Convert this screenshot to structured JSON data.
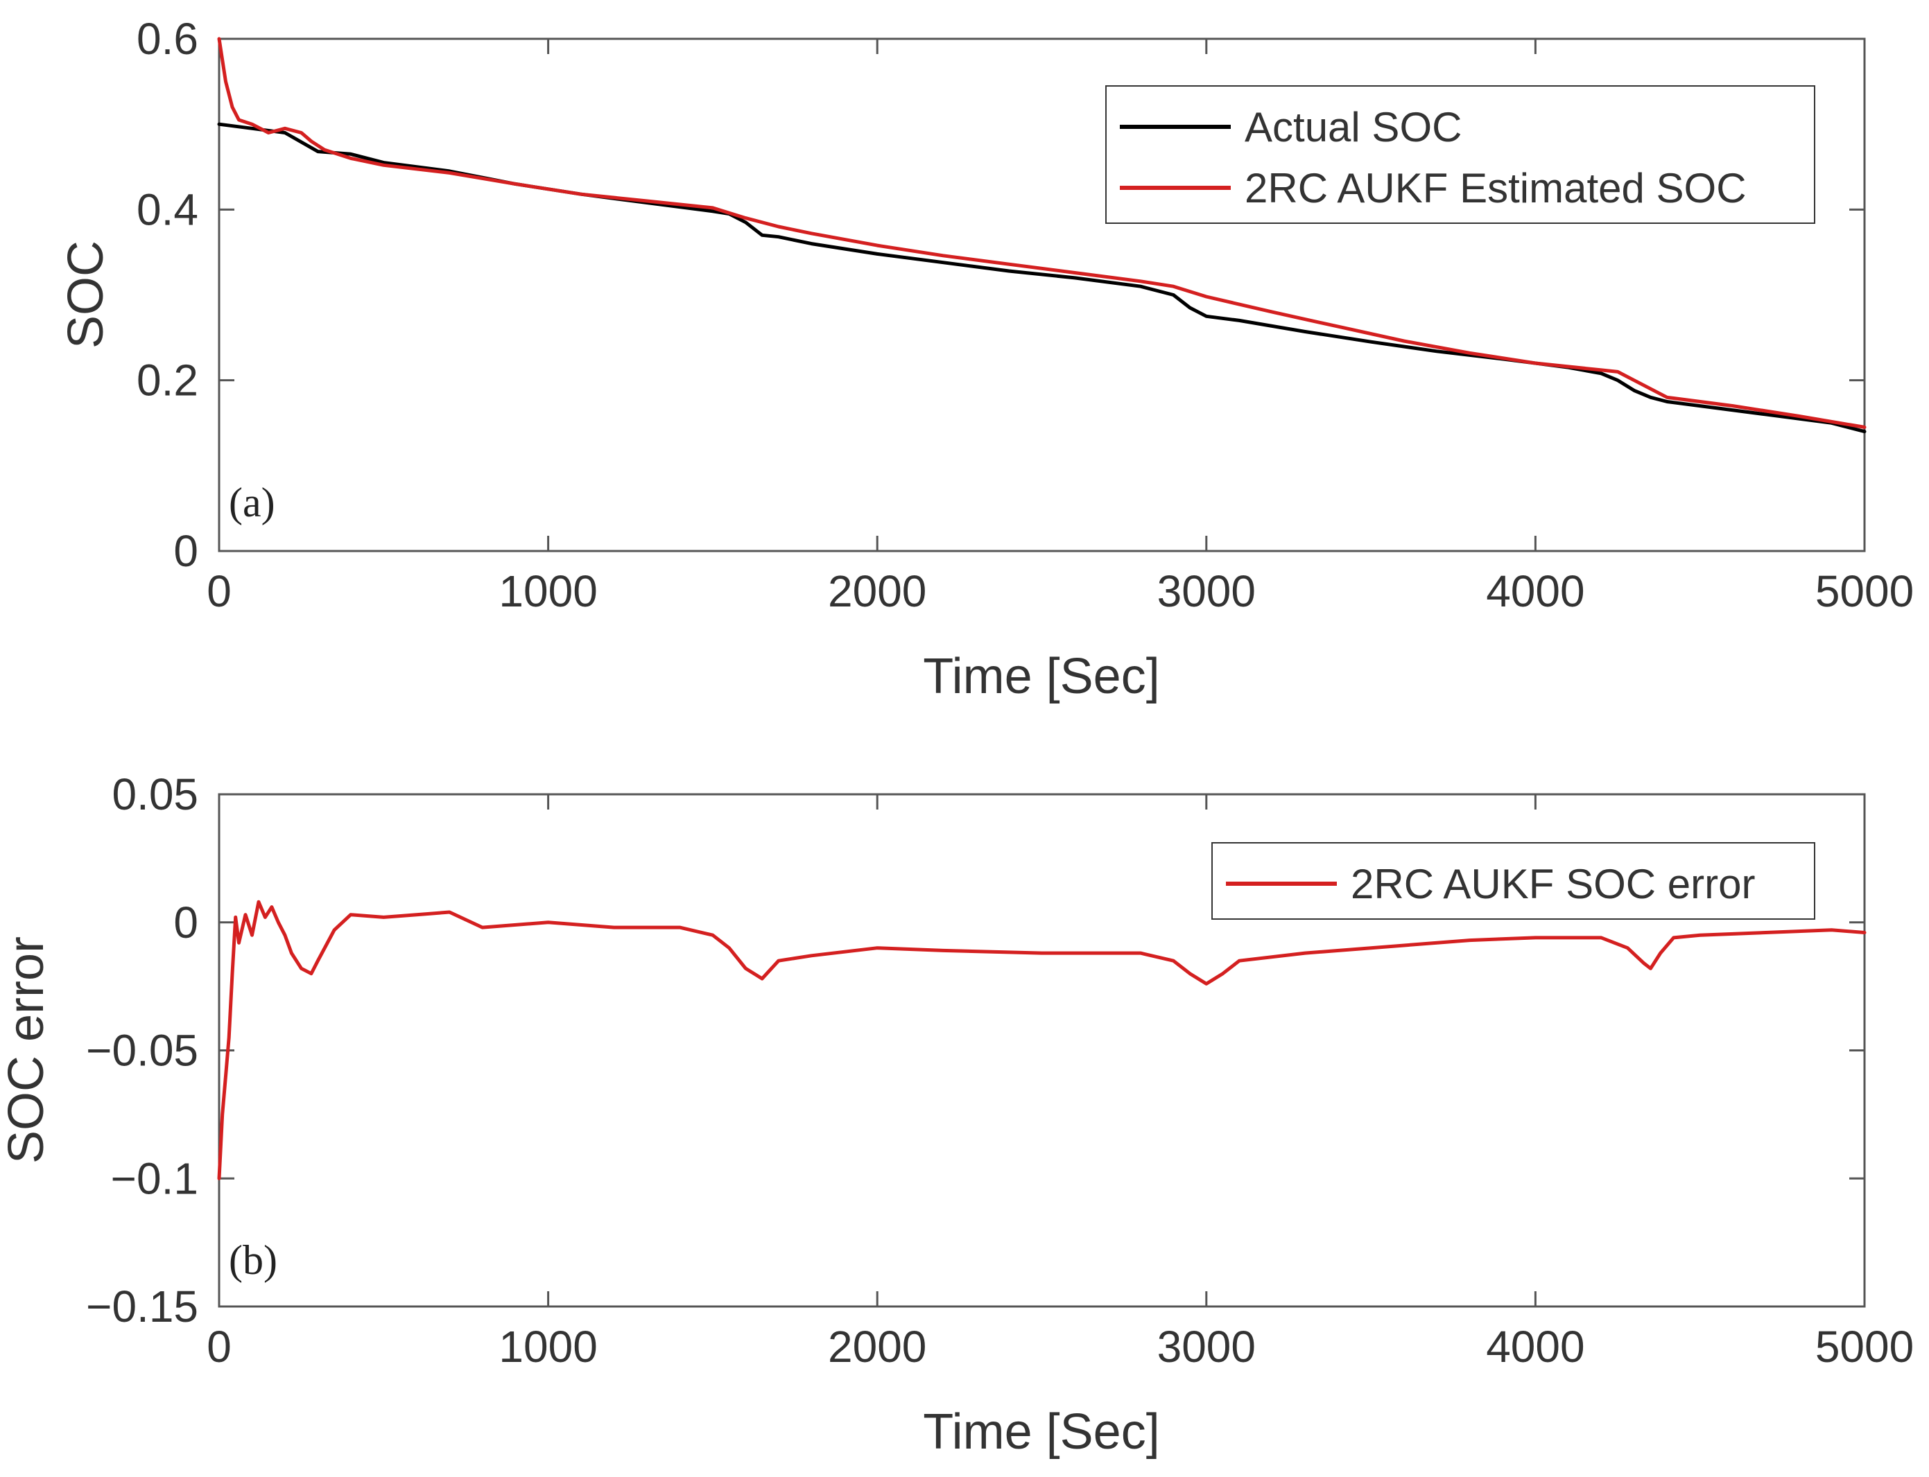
{
  "chart_data": [
    {
      "type": "line",
      "panel_label": "(a)",
      "title": "",
      "xlabel": "Time [Sec]",
      "ylabel": "SOC",
      "xlim": [
        0,
        5000
      ],
      "ylim": [
        0,
        0.6
      ],
      "xticks": [
        0,
        1000,
        2000,
        3000,
        4000,
        5000
      ],
      "yticks": [
        0,
        0.2,
        0.4,
        0.6
      ],
      "xtick_labels": [
        "0",
        "1000",
        "2000",
        "3000",
        "4000",
        "5000"
      ],
      "ytick_labels": [
        "0",
        "0.2",
        "0.4",
        "0.6"
      ],
      "legend_position": "top-right",
      "series": [
        {
          "name": "Actual SOC",
          "color": "#000000",
          "x": [
            0,
            100,
            200,
            300,
            400,
            500,
            700,
            900,
            1100,
            1300,
            1500,
            1550,
            1600,
            1650,
            1700,
            1800,
            2000,
            2200,
            2400,
            2600,
            2800,
            2900,
            2950,
            3000,
            3100,
            3300,
            3500,
            3700,
            3900,
            4100,
            4200,
            4250,
            4300,
            4350,
            4400,
            4500,
            4700,
            4900,
            5000
          ],
          "y": [
            0.5,
            0.495,
            0.49,
            0.468,
            0.465,
            0.455,
            0.445,
            0.43,
            0.418,
            0.408,
            0.398,
            0.395,
            0.385,
            0.37,
            0.368,
            0.36,
            0.348,
            0.338,
            0.328,
            0.32,
            0.31,
            0.3,
            0.285,
            0.275,
            0.27,
            0.257,
            0.245,
            0.234,
            0.225,
            0.215,
            0.208,
            0.2,
            0.188,
            0.18,
            0.175,
            0.17,
            0.16,
            0.15,
            0.14
          ]
        },
        {
          "name": "2RC AUKF Estimated SOC",
          "color": "#d42020",
          "x": [
            0,
            20,
            40,
            60,
            100,
            150,
            200,
            250,
            280,
            320,
            400,
            500,
            700,
            900,
            1100,
            1300,
            1500,
            1600,
            1700,
            1800,
            2000,
            2200,
            2400,
            2600,
            2800,
            2900,
            3000,
            3200,
            3400,
            3600,
            3800,
            4000,
            4200,
            4250,
            4300,
            4400,
            4600,
            4800,
            5000
          ],
          "y": [
            0.6,
            0.55,
            0.52,
            0.505,
            0.5,
            0.49,
            0.495,
            0.49,
            0.48,
            0.47,
            0.46,
            0.452,
            0.443,
            0.43,
            0.418,
            0.41,
            0.402,
            0.39,
            0.38,
            0.372,
            0.358,
            0.346,
            0.336,
            0.326,
            0.316,
            0.31,
            0.298,
            0.28,
            0.263,
            0.246,
            0.232,
            0.22,
            0.212,
            0.21,
            0.2,
            0.18,
            0.17,
            0.158,
            0.145
          ]
        }
      ]
    },
    {
      "type": "line",
      "panel_label": "(b)",
      "title": "",
      "xlabel": "Time [Sec]",
      "ylabel": "SOC error",
      "xlim": [
        0,
        5000
      ],
      "ylim": [
        -0.15,
        0.05
      ],
      "xticks": [
        0,
        1000,
        2000,
        3000,
        4000,
        5000
      ],
      "yticks": [
        -0.15,
        -0.1,
        -0.05,
        0,
        0.05
      ],
      "xtick_labels": [
        "0",
        "1000",
        "2000",
        "3000",
        "4000",
        "5000"
      ],
      "ytick_labels": [
        "−0.15",
        "−0.1",
        "−0.05",
        "0",
        "0.05"
      ],
      "legend_position": "top-right",
      "series": [
        {
          "name": "2RC AUKF SOC error",
          "color": "#d42020",
          "x": [
            0,
            10,
            20,
            30,
            40,
            50,
            60,
            80,
            100,
            120,
            140,
            160,
            180,
            200,
            220,
            250,
            280,
            300,
            350,
            400,
            500,
            600,
            700,
            800,
            1000,
            1200,
            1400,
            1500,
            1550,
            1600,
            1650,
            1700,
            1800,
            2000,
            2200,
            2500,
            2800,
            2900,
            2950,
            3000,
            3050,
            3100,
            3300,
            3500,
            3800,
            4000,
            4200,
            4280,
            4330,
            4350,
            4380,
            4420,
            4500,
            4700,
            4900,
            5000
          ],
          "y": [
            -0.1,
            -0.075,
            -0.06,
            -0.045,
            -0.02,
            0.002,
            -0.008,
            0.003,
            -0.005,
            0.008,
            0.002,
            0.006,
            0.0,
            -0.005,
            -0.012,
            -0.018,
            -0.02,
            -0.015,
            -0.003,
            0.003,
            0.002,
            0.003,
            0.004,
            -0.002,
            0.0,
            -0.002,
            -0.002,
            -0.005,
            -0.01,
            -0.018,
            -0.022,
            -0.015,
            -0.013,
            -0.01,
            -0.011,
            -0.012,
            -0.012,
            -0.015,
            -0.02,
            -0.024,
            -0.02,
            -0.015,
            -0.012,
            -0.01,
            -0.007,
            -0.006,
            -0.006,
            -0.01,
            -0.016,
            -0.018,
            -0.012,
            -0.006,
            -0.005,
            -0.004,
            -0.003,
            -0.004
          ]
        }
      ]
    }
  ]
}
